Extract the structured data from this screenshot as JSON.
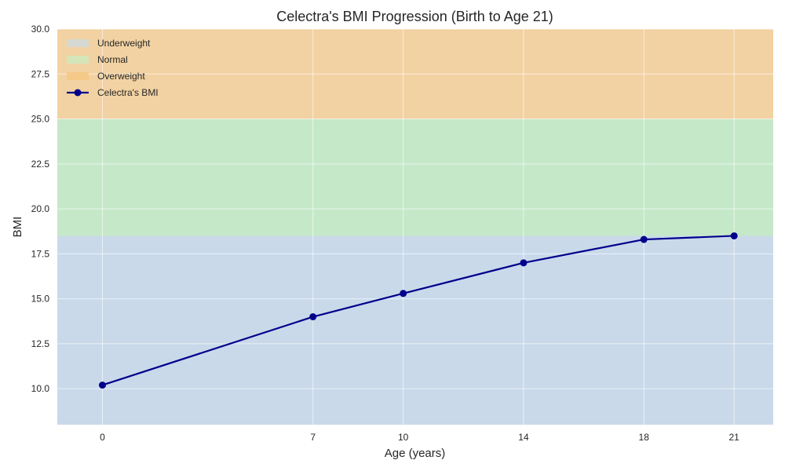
{
  "chart_data": {
    "type": "line",
    "title": "Celectra's BMI Progression (Birth to Age 21)",
    "xlabel": "Age (years)",
    "ylabel": "BMI",
    "xlim": [
      -1.5,
      22.3
    ],
    "ylim": [
      8.0,
      30.0
    ],
    "x": [
      0,
      7,
      10,
      14,
      18,
      21
    ],
    "x_ticks": [
      0,
      7,
      10,
      14,
      18,
      21
    ],
    "y_ticks": [
      10.0,
      12.5,
      15.0,
      17.5,
      20.0,
      22.5,
      25.0,
      27.5,
      30.0
    ],
    "y_tick_labels": [
      "10.0",
      "12.5",
      "15.0",
      "17.5",
      "20.0",
      "22.5",
      "25.0",
      "27.5",
      "30.0"
    ],
    "grid": true,
    "legend_position": "top-left",
    "bands": [
      {
        "name": "Underweight",
        "y0": 0,
        "y1": 18.5,
        "color": "#c9d9ea",
        "legend_color": "#d6d9d2"
      },
      {
        "name": "Normal",
        "y0": 18.5,
        "y1": 25.0,
        "color": "#c5e8c9",
        "legend_color": "#d3e5b9"
      },
      {
        "name": "Overweight",
        "y0": 25.0,
        "y1": 30.0,
        "color": "#f2d2a2",
        "legend_color": "#f5c987"
      }
    ],
    "series": [
      {
        "name": "Celectra's BMI",
        "values": [
          10.2,
          14.0,
          15.3,
          17.0,
          18.3,
          18.5
        ],
        "color": "#00008b"
      }
    ]
  }
}
